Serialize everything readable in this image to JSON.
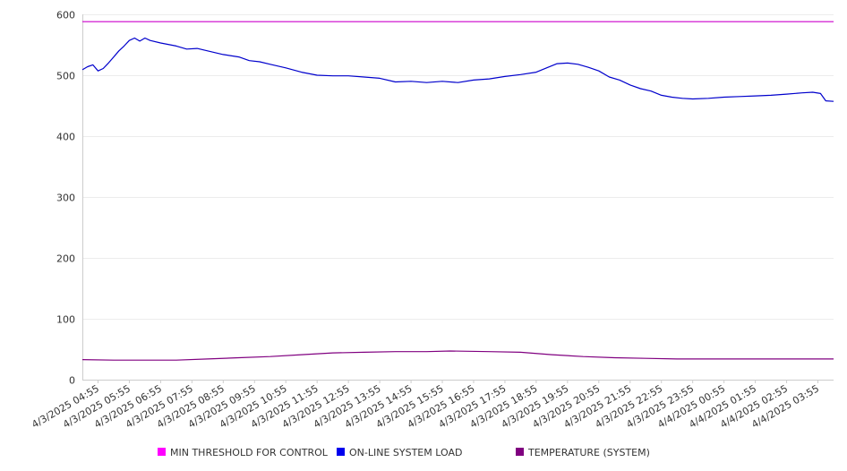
{
  "chart_data": {
    "type": "line",
    "title": "",
    "xlabel": "",
    "ylabel": "",
    "ylim": [
      0,
      600
    ],
    "y_ticks": [
      "0",
      "100",
      "200",
      "300",
      "400",
      "500",
      "600"
    ],
    "x_tick_labels": [
      "4/3/2025 04:55",
      "4/3/2025 05:55",
      "4/3/2025 06:55",
      "4/3/2025 07:55",
      "4/3/2025 08:55",
      "4/3/2025 09:55",
      "4/3/2025 10:55",
      "4/3/2025 11:55",
      "4/3/2025 12:55",
      "4/3/2025 13:55",
      "4/3/2025 14:55",
      "4/3/2025 15:55",
      "4/3/2025 16:55",
      "4/3/2025 17:55",
      "4/3/2025 18:55",
      "4/3/2025 19:55",
      "4/3/2025 20:55",
      "4/3/2025 21:55",
      "4/3/2025 22:55",
      "4/3/2025 23:55",
      "4/4/2025 00:55",
      "4/4/2025 01:55",
      "4/4/2025 02:55",
      "4/4/2025 03:55"
    ],
    "x_range": [
      "4/3/2025 04:25",
      "4/4/2025 04:25"
    ],
    "grid": "horizontal",
    "legend_placement": "bottom",
    "series": [
      {
        "name": "MIN THRESHOLD FOR CONTROL",
        "color": "#ff00ff",
        "line_color": "#cc00cc",
        "points": [
          [
            "4/3/2025 04:25",
            588
          ],
          [
            "4/4/2025 04:25",
            588
          ]
        ]
      },
      {
        "name": "ON-LINE SYSTEM LOAD",
        "color": "#0000ee",
        "line_color": "#0000cc",
        "points": [
          [
            "4/3/2025 04:25",
            509
          ],
          [
            "4/3/2025 04:35",
            514
          ],
          [
            "4/3/2025 04:45",
            517
          ],
          [
            "4/3/2025 04:55",
            507
          ],
          [
            "4/3/2025 05:05",
            511
          ],
          [
            "4/3/2025 05:15",
            520
          ],
          [
            "4/3/2025 05:25",
            530
          ],
          [
            "4/3/2025 05:35",
            540
          ],
          [
            "4/3/2025 05:45",
            548
          ],
          [
            "4/3/2025 05:55",
            557
          ],
          [
            "4/3/2025 06:05",
            561
          ],
          [
            "4/3/2025 06:15",
            556
          ],
          [
            "4/3/2025 06:25",
            561
          ],
          [
            "4/3/2025 06:35",
            557
          ],
          [
            "4/3/2025 06:55",
            553
          ],
          [
            "4/3/2025 07:25",
            548
          ],
          [
            "4/3/2025 07:45",
            543
          ],
          [
            "4/3/2025 08:05",
            544
          ],
          [
            "4/3/2025 08:25",
            540
          ],
          [
            "4/3/2025 08:55",
            534
          ],
          [
            "4/3/2025 09:25",
            530
          ],
          [
            "4/3/2025 09:45",
            524
          ],
          [
            "4/3/2025 10:05",
            522
          ],
          [
            "4/3/2025 10:25",
            518
          ],
          [
            "4/3/2025 10:55",
            512
          ],
          [
            "4/3/2025 11:25",
            505
          ],
          [
            "4/3/2025 11:55",
            500
          ],
          [
            "4/3/2025 12:25",
            499
          ],
          [
            "4/3/2025 12:55",
            499
          ],
          [
            "4/3/2025 13:25",
            497
          ],
          [
            "4/3/2025 13:55",
            495
          ],
          [
            "4/3/2025 14:25",
            489
          ],
          [
            "4/3/2025 14:55",
            490
          ],
          [
            "4/3/2025 15:25",
            488
          ],
          [
            "4/3/2025 15:55",
            490
          ],
          [
            "4/3/2025 16:25",
            488
          ],
          [
            "4/3/2025 16:55",
            492
          ],
          [
            "4/3/2025 17:25",
            494
          ],
          [
            "4/3/2025 17:55",
            498
          ],
          [
            "4/3/2025 18:25",
            501
          ],
          [
            "4/3/2025 18:55",
            505
          ],
          [
            "4/3/2025 19:15",
            512
          ],
          [
            "4/3/2025 19:35",
            519
          ],
          [
            "4/3/2025 19:55",
            520
          ],
          [
            "4/3/2025 20:15",
            518
          ],
          [
            "4/3/2025 20:35",
            513
          ],
          [
            "4/3/2025 20:55",
            507
          ],
          [
            "4/3/2025 21:15",
            497
          ],
          [
            "4/3/2025 21:35",
            492
          ],
          [
            "4/3/2025 21:55",
            484
          ],
          [
            "4/3/2025 22:15",
            478
          ],
          [
            "4/3/2025 22:35",
            474
          ],
          [
            "4/3/2025 22:55",
            467
          ],
          [
            "4/3/2025 23:15",
            464
          ],
          [
            "4/3/2025 23:35",
            462
          ],
          [
            "4/3/2025 23:55",
            461
          ],
          [
            "4/4/2025 00:25",
            462
          ],
          [
            "4/4/2025 00:55",
            464
          ],
          [
            "4/4/2025 01:25",
            465
          ],
          [
            "4/4/2025 01:55",
            466
          ],
          [
            "4/4/2025 02:25",
            467
          ],
          [
            "4/4/2025 02:55",
            469
          ],
          [
            "4/4/2025 03:25",
            471
          ],
          [
            "4/4/2025 03:45",
            472
          ],
          [
            "4/4/2025 04:00",
            470
          ],
          [
            "4/4/2025 04:10",
            458
          ],
          [
            "4/4/2025 04:25",
            457
          ]
        ]
      },
      {
        "name": "TEMPERATURE (SYSTEM)",
        "color": "#800080",
        "line_color": "#800080",
        "points": [
          [
            "4/3/2025 04:25",
            33
          ],
          [
            "4/3/2025 05:25",
            32
          ],
          [
            "4/3/2025 07:25",
            32
          ],
          [
            "4/3/2025 08:25",
            34
          ],
          [
            "4/3/2025 09:25",
            36
          ],
          [
            "4/3/2025 10:25",
            38
          ],
          [
            "4/3/2025 11:25",
            41
          ],
          [
            "4/3/2025 12:25",
            44
          ],
          [
            "4/3/2025 13:25",
            45
          ],
          [
            "4/3/2025 14:25",
            46
          ],
          [
            "4/3/2025 15:25",
            46
          ],
          [
            "4/3/2025 16:10",
            47
          ],
          [
            "4/3/2025 17:25",
            46
          ],
          [
            "4/3/2025 18:25",
            45
          ],
          [
            "4/3/2025 19:25",
            41
          ],
          [
            "4/3/2025 20:25",
            38
          ],
          [
            "4/3/2025 21:25",
            36
          ],
          [
            "4/3/2025 22:25",
            35
          ],
          [
            "4/3/2025 23:25",
            34
          ],
          [
            "4/4/2025 01:25",
            34
          ],
          [
            "4/4/2025 04:25",
            34
          ]
        ]
      }
    ]
  }
}
